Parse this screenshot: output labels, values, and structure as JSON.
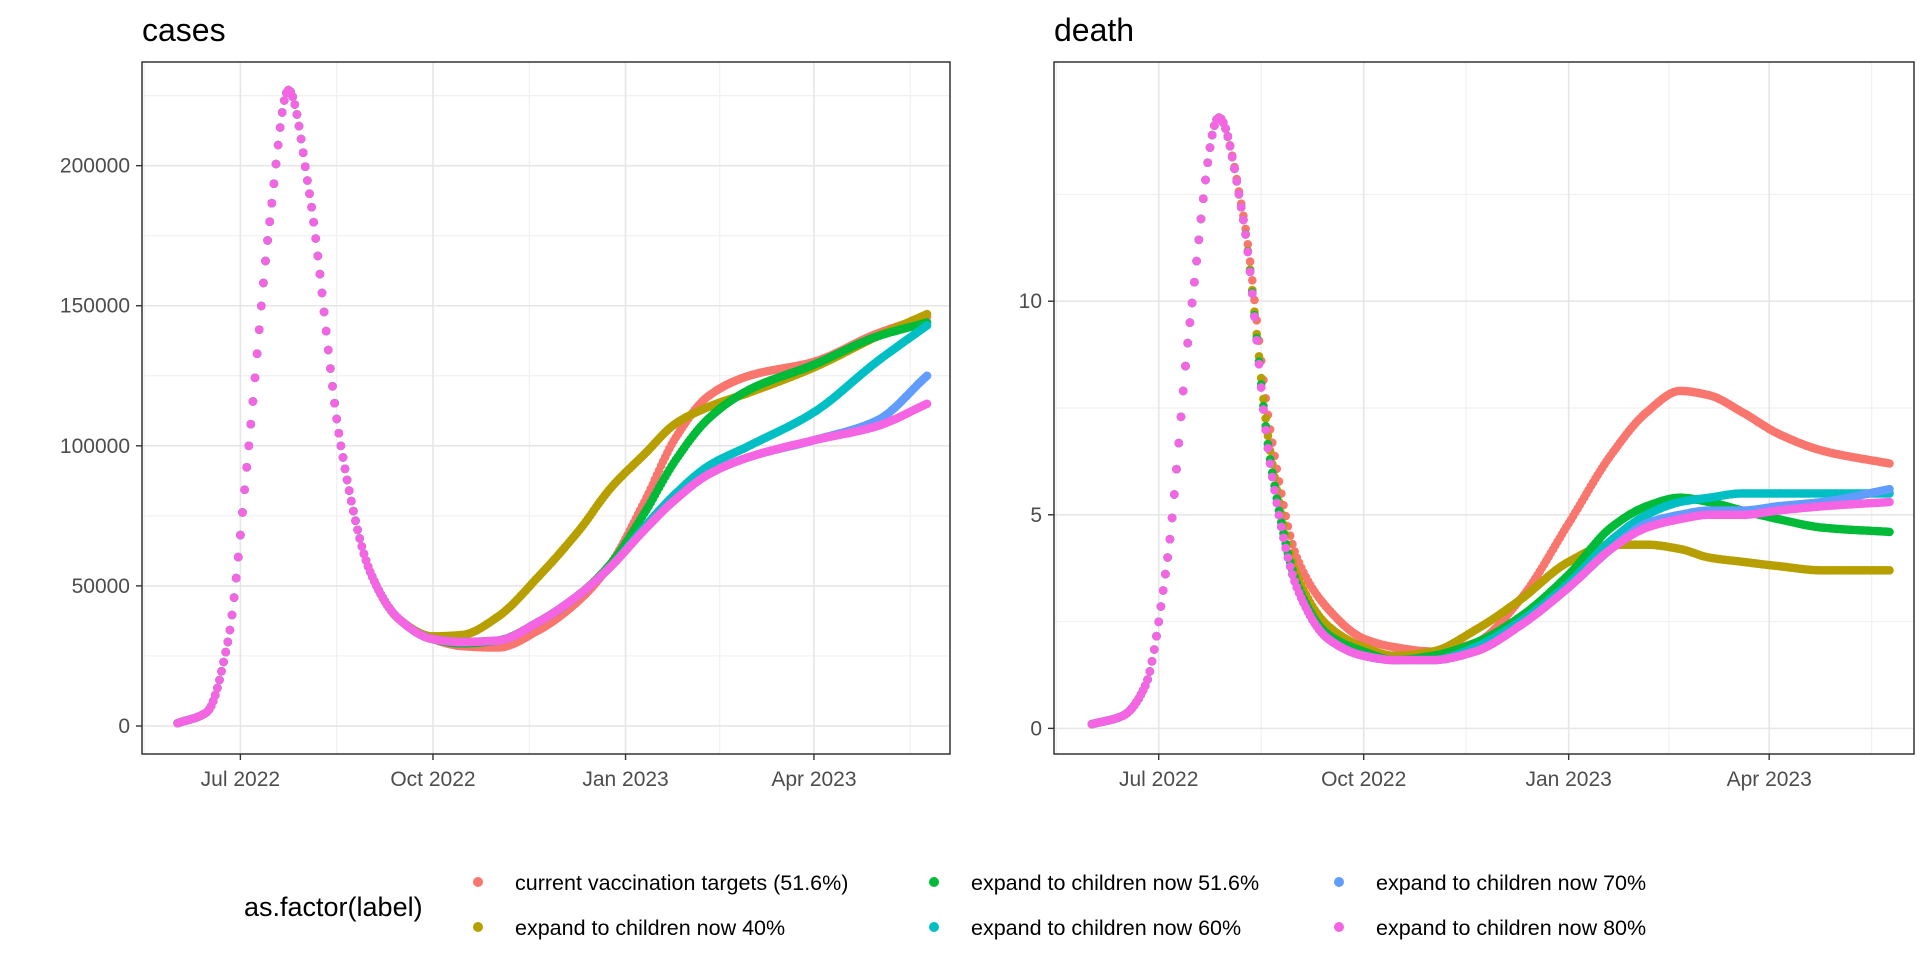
{
  "legend": {
    "title": "as.factor(label)",
    "placement": "bottom",
    "entries": [
      {
        "label": "current vaccination targets (51.6%)",
        "color": "#F8766D"
      },
      {
        "label": "expand to children now 40%",
        "color": "#B79F00"
      },
      {
        "label": "expand to children now 51.6%",
        "color": "#00BA38"
      },
      {
        "label": "expand to children now 60%",
        "color": "#00BFC4"
      },
      {
        "label": "expand to children now 70%",
        "color": "#619CFF"
      },
      {
        "label": "expand to children now 80%",
        "color": "#F564E3"
      }
    ]
  },
  "chart_data": [
    {
      "type": "scatter",
      "title": "cases",
      "xlabel": "",
      "ylabel": "",
      "x_type": "date",
      "xlim": [
        "2022-05-15",
        "2023-06-05"
      ],
      "ylim": [
        -10000,
        237000
      ],
      "x_ticks": [
        {
          "date": "2022-07-01",
          "label": "Jul 2022"
        },
        {
          "date": "2022-10-01",
          "label": "Oct 2022"
        },
        {
          "date": "2023-01-01",
          "label": "Jan 2023"
        },
        {
          "date": "2023-04-01",
          "label": "Apr 2023"
        }
      ],
      "y_ticks": [
        0,
        50000,
        100000,
        150000,
        200000
      ],
      "y_tick_labels": [
        "0",
        "50000",
        "100000",
        "150000",
        "200000"
      ],
      "grid": true,
      "series": [
        {
          "name": "current vaccination targets (51.6%)",
          "x": [
            "2022-06-01",
            "2022-06-15",
            "2022-06-25",
            "2022-07-05",
            "2022-07-15",
            "2022-07-24",
            "2022-08-03",
            "2022-08-18",
            "2022-09-01",
            "2022-09-15",
            "2022-10-01",
            "2022-10-15",
            "2022-11-01",
            "2022-11-20",
            "2022-12-10",
            "2022-12-25",
            "2023-01-10",
            "2023-01-25",
            "2023-02-10",
            "2023-03-01",
            "2023-04-01",
            "2023-05-01",
            "2023-05-25"
          ],
          "values": [
            1000,
            5000,
            30000,
            100000,
            180000,
            227000,
            190000,
            100000,
            55000,
            38000,
            31000,
            28500,
            28000,
            34000,
            45000,
            58000,
            80000,
            103000,
            118000,
            125000,
            130000,
            140000,
            146000
          ]
        },
        {
          "name": "expand to children now 40%",
          "x": [
            "2022-06-01",
            "2022-06-15",
            "2022-06-25",
            "2022-07-05",
            "2022-07-15",
            "2022-07-24",
            "2022-08-03",
            "2022-08-18",
            "2022-09-01",
            "2022-09-15",
            "2022-10-01",
            "2022-10-15",
            "2022-11-01",
            "2022-11-20",
            "2022-12-10",
            "2022-12-25",
            "2023-01-10",
            "2023-01-25",
            "2023-02-10",
            "2023-03-01",
            "2023-04-01",
            "2023-05-01",
            "2023-05-25"
          ],
          "values": [
            1000,
            5000,
            30000,
            100000,
            180000,
            227000,
            190000,
            100000,
            55000,
            38000,
            32000,
            32500,
            39000,
            53000,
            70000,
            85000,
            97000,
            108000,
            114000,
            119000,
            128000,
            139000,
            147000
          ]
        },
        {
          "name": "expand to children now 51.6%",
          "x": [
            "2022-06-01",
            "2022-06-15",
            "2022-06-25",
            "2022-07-05",
            "2022-07-15",
            "2022-07-24",
            "2022-08-03",
            "2022-08-18",
            "2022-09-01",
            "2022-09-15",
            "2022-10-01",
            "2022-10-15",
            "2022-11-01",
            "2022-11-20",
            "2022-12-10",
            "2022-12-25",
            "2023-01-10",
            "2023-01-25",
            "2023-02-10",
            "2023-03-01",
            "2023-04-01",
            "2023-05-01",
            "2023-05-25"
          ],
          "values": [
            1000,
            5000,
            30000,
            100000,
            180000,
            227000,
            190000,
            100000,
            55000,
            38000,
            31000,
            29500,
            30500,
            37000,
            47000,
            58000,
            76000,
            95000,
            110000,
            120000,
            129000,
            139000,
            144000
          ]
        },
        {
          "name": "expand to children now 60%",
          "x": [
            "2022-06-01",
            "2022-06-15",
            "2022-06-25",
            "2022-07-05",
            "2022-07-15",
            "2022-07-24",
            "2022-08-03",
            "2022-08-18",
            "2022-09-01",
            "2022-09-15",
            "2022-10-01",
            "2022-10-15",
            "2022-11-01",
            "2022-11-20",
            "2022-12-10",
            "2022-12-25",
            "2023-01-10",
            "2023-01-25",
            "2023-02-10",
            "2023-03-01",
            "2023-04-01",
            "2023-05-01",
            "2023-05-25"
          ],
          "values": [
            1000,
            5000,
            30000,
            100000,
            180000,
            227000,
            190000,
            100000,
            55000,
            38000,
            31000,
            30000,
            30500,
            37000,
            47000,
            57000,
            71000,
            83000,
            93000,
            100000,
            112000,
            130000,
            143000
          ]
        },
        {
          "name": "expand to children now 70%",
          "x": [
            "2022-06-01",
            "2022-06-15",
            "2022-06-25",
            "2022-07-05",
            "2022-07-15",
            "2022-07-24",
            "2022-08-03",
            "2022-08-18",
            "2022-09-01",
            "2022-09-15",
            "2022-10-01",
            "2022-10-15",
            "2022-11-01",
            "2022-11-20",
            "2022-12-10",
            "2022-12-25",
            "2023-01-10",
            "2023-01-25",
            "2023-02-10",
            "2023-03-01",
            "2023-04-01",
            "2023-05-01",
            "2023-05-25"
          ],
          "values": [
            1000,
            5000,
            30000,
            100000,
            180000,
            227000,
            190000,
            100000,
            55000,
            38000,
            31000,
            30000,
            30500,
            37000,
            47000,
            57000,
            70000,
            81000,
            90000,
            96000,
            102000,
            109000,
            125000
          ]
        },
        {
          "name": "expand to children now 80%",
          "x": [
            "2022-06-01",
            "2022-06-15",
            "2022-06-25",
            "2022-07-05",
            "2022-07-15",
            "2022-07-24",
            "2022-08-03",
            "2022-08-18",
            "2022-09-01",
            "2022-09-15",
            "2022-10-01",
            "2022-10-15",
            "2022-11-01",
            "2022-11-20",
            "2022-12-10",
            "2022-12-25",
            "2023-01-10",
            "2023-01-25",
            "2023-02-10",
            "2023-03-01",
            "2023-04-01",
            "2023-05-01",
            "2023-05-25"
          ],
          "values": [
            1000,
            5000,
            30000,
            100000,
            180000,
            227000,
            190000,
            100000,
            55000,
            38000,
            31000,
            30000,
            30500,
            37000,
            47000,
            57000,
            70000,
            81000,
            90000,
            96000,
            102000,
            107000,
            115000
          ]
        }
      ]
    },
    {
      "type": "scatter",
      "title": "death",
      "xlabel": "",
      "ylabel": "",
      "x_type": "date",
      "xlim": [
        "2022-05-15",
        "2023-06-05"
      ],
      "ylim": [
        -0.6,
        15.6
      ],
      "x_ticks": [
        {
          "date": "2022-07-01",
          "label": "Jul 2022"
        },
        {
          "date": "2022-10-01",
          "label": "Oct 2022"
        },
        {
          "date": "2023-01-01",
          "label": "Jan 2023"
        },
        {
          "date": "2023-04-01",
          "label": "Apr 2023"
        }
      ],
      "y_ticks": [
        0,
        5,
        10
      ],
      "y_tick_labels": [
        "0",
        "5",
        "10"
      ],
      "grid": true,
      "series": [
        {
          "name": "current vaccination targets (51.6%)",
          "x": [
            "2022-06-01",
            "2022-06-15",
            "2022-06-25",
            "2022-07-05",
            "2022-07-15",
            "2022-07-28",
            "2022-08-08",
            "2022-08-20",
            "2022-09-01",
            "2022-09-15",
            "2022-10-01",
            "2022-10-15",
            "2022-11-01",
            "2022-11-20",
            "2022-12-10",
            "2023-01-01",
            "2023-01-20",
            "2023-02-05",
            "2023-02-20",
            "2023-03-05",
            "2023-03-20",
            "2023-04-05",
            "2023-04-25",
            "2023-05-25"
          ],
          "values": [
            0.1,
            0.3,
            1.0,
            4.0,
            9.5,
            14.3,
            12.0,
            7.0,
            4.0,
            2.8,
            2.1,
            1.9,
            1.8,
            2.0,
            3.0,
            4.8,
            6.4,
            7.4,
            7.9,
            7.8,
            7.4,
            6.9,
            6.5,
            6.2
          ]
        },
        {
          "name": "expand to children now 40%",
          "x": [
            "2022-06-01",
            "2022-06-15",
            "2022-06-25",
            "2022-07-05",
            "2022-07-15",
            "2022-07-28",
            "2022-08-08",
            "2022-08-20",
            "2022-09-01",
            "2022-09-15",
            "2022-10-01",
            "2022-10-15",
            "2022-11-01",
            "2022-11-20",
            "2022-12-10",
            "2023-01-01",
            "2023-01-20",
            "2023-02-05",
            "2023-02-20",
            "2023-03-05",
            "2023-03-20",
            "2023-04-05",
            "2023-04-25",
            "2023-05-25"
          ],
          "values": [
            0.1,
            0.3,
            1.0,
            4.0,
            9.5,
            14.3,
            11.9,
            6.5,
            3.6,
            2.4,
            1.9,
            1.7,
            1.8,
            2.3,
            3.0,
            3.9,
            4.3,
            4.3,
            4.2,
            4.0,
            3.9,
            3.8,
            3.7,
            3.7
          ]
        },
        {
          "name": "expand to children now 51.6%",
          "x": [
            "2022-06-01",
            "2022-06-15",
            "2022-06-25",
            "2022-07-05",
            "2022-07-15",
            "2022-07-28",
            "2022-08-08",
            "2022-08-20",
            "2022-09-01",
            "2022-09-15",
            "2022-10-01",
            "2022-10-15",
            "2022-11-01",
            "2022-11-20",
            "2022-12-10",
            "2023-01-01",
            "2023-01-20",
            "2023-02-05",
            "2023-02-20",
            "2023-03-05",
            "2023-03-20",
            "2023-04-05",
            "2023-04-25",
            "2023-05-25"
          ],
          "values": [
            0.1,
            0.3,
            1.0,
            4.0,
            9.5,
            14.3,
            11.9,
            6.3,
            3.4,
            2.2,
            1.8,
            1.6,
            1.7,
            2.0,
            2.6,
            3.6,
            4.7,
            5.2,
            5.4,
            5.3,
            5.1,
            4.9,
            4.7,
            4.6
          ]
        },
        {
          "name": "expand to children now 60%",
          "x": [
            "2022-06-01",
            "2022-06-15",
            "2022-06-25",
            "2022-07-05",
            "2022-07-15",
            "2022-07-28",
            "2022-08-08",
            "2022-08-20",
            "2022-09-01",
            "2022-09-15",
            "2022-10-01",
            "2022-10-15",
            "2022-11-01",
            "2022-11-20",
            "2022-12-10",
            "2023-01-01",
            "2023-01-20",
            "2023-02-05",
            "2023-02-20",
            "2023-03-05",
            "2023-03-20",
            "2023-04-05",
            "2023-04-25",
            "2023-05-25"
          ],
          "values": [
            0.1,
            0.3,
            1.0,
            4.0,
            9.5,
            14.3,
            11.9,
            6.2,
            3.3,
            2.1,
            1.7,
            1.6,
            1.6,
            1.9,
            2.5,
            3.4,
            4.4,
            5.0,
            5.3,
            5.4,
            5.5,
            5.5,
            5.5,
            5.5
          ]
        },
        {
          "name": "expand to children now 70%",
          "x": [
            "2022-06-01",
            "2022-06-15",
            "2022-06-25",
            "2022-07-05",
            "2022-07-15",
            "2022-07-28",
            "2022-08-08",
            "2022-08-20",
            "2022-09-01",
            "2022-09-15",
            "2022-10-01",
            "2022-10-15",
            "2022-11-01",
            "2022-11-20",
            "2022-12-10",
            "2023-01-01",
            "2023-01-20",
            "2023-02-05",
            "2023-02-20",
            "2023-03-05",
            "2023-03-20",
            "2023-04-05",
            "2023-04-25",
            "2023-05-25"
          ],
          "values": [
            0.1,
            0.3,
            1.0,
            4.0,
            9.5,
            14.3,
            11.9,
            6.2,
            3.3,
            2.1,
            1.7,
            1.6,
            1.6,
            1.8,
            2.4,
            3.3,
            4.2,
            4.8,
            5.0,
            5.1,
            5.1,
            5.2,
            5.3,
            5.6
          ]
        },
        {
          "name": "expand to children now 80%",
          "x": [
            "2022-06-01",
            "2022-06-15",
            "2022-06-25",
            "2022-07-05",
            "2022-07-15",
            "2022-07-28",
            "2022-08-08",
            "2022-08-20",
            "2022-09-01",
            "2022-09-15",
            "2022-10-01",
            "2022-10-15",
            "2022-11-01",
            "2022-11-20",
            "2022-12-10",
            "2023-01-01",
            "2023-01-20",
            "2023-02-05",
            "2023-02-20",
            "2023-03-05",
            "2023-03-20",
            "2023-04-05",
            "2023-04-25",
            "2023-05-25"
          ],
          "values": [
            0.1,
            0.3,
            1.0,
            4.0,
            9.5,
            14.3,
            11.9,
            6.2,
            3.3,
            2.1,
            1.7,
            1.6,
            1.6,
            1.8,
            2.4,
            3.3,
            4.2,
            4.7,
            4.9,
            5.0,
            5.0,
            5.1,
            5.2,
            5.3
          ]
        }
      ]
    }
  ]
}
